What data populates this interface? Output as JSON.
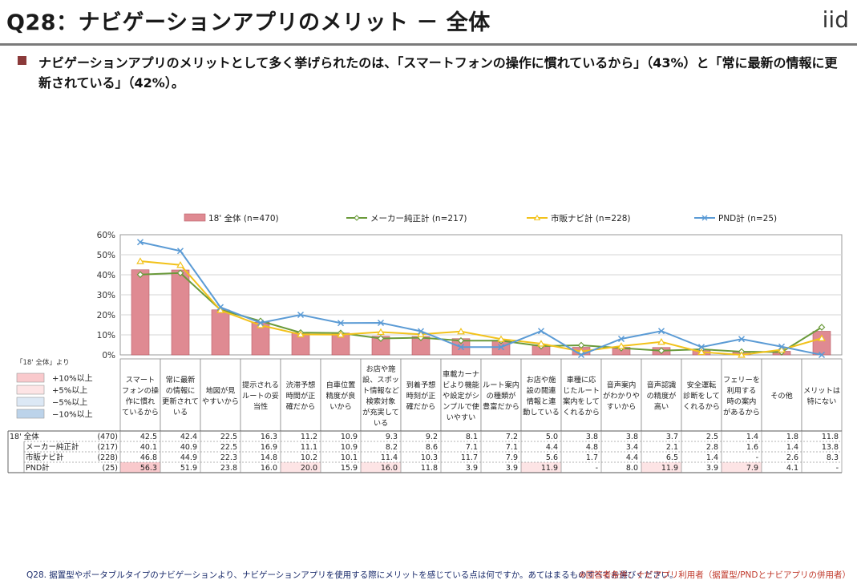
{
  "page": {
    "title": "Q28：ナビゲーションアプリのメリット － 全体",
    "logo": "iid",
    "lead": "ナビゲーションアプリのメリットとして多く挙げられたのは、「スマートフォンの操作に慣れているから」（43%）と「常に最新の情報に更新されている」（42%）。",
    "footer_question": "Q28. 据置型やポータブルタイプのナビゲーションより、ナビゲーションアプリを使用する際にメリットを感じている点は何ですか。あてはまるものすべてお選びください。",
    "footer_note": "※回答者条件：ナビアプリ利用者（据置型/PNDとナビアプリの併用者）",
    "table_note": "「18' 全体」より",
    "highlight_legend": [
      "+10%以上",
      "+5%以上",
      "−5%以上",
      "−10%以上"
    ],
    "highlight_colors": [
      "#f9c9cc",
      "#fde4e5",
      "#dce8f5",
      "#bcd3ea"
    ]
  },
  "chart_data": {
    "type": "bar",
    "y_ticks": [
      "0%",
      "10%",
      "20%",
      "30%",
      "40%",
      "50%",
      "60%"
    ],
    "ylim": [
      0,
      60
    ],
    "categories": [
      [
        "スマート",
        "フォンの操",
        "作に慣れ",
        "ているから"
      ],
      [
        "常に最新",
        "の情報に",
        "更新されて",
        "いる"
      ],
      [
        "地図が見",
        "やすいから"
      ],
      [
        "提示される",
        "ルートの妥",
        "当性"
      ],
      [
        "渋滞予想",
        "時間が正",
        "確だから"
      ],
      [
        "自車位置",
        "精度が良",
        "いから"
      ],
      [
        "お店や施",
        "設、スポッ",
        "ト情報など",
        "検索対象",
        "が充実して",
        "いる"
      ],
      [
        "到着予想",
        "時刻が正",
        "確だから"
      ],
      [
        "車載カーナ",
        "ビより機能",
        "や設定がシ",
        "ンプルで使",
        "いやすい"
      ],
      [
        "ルート案内",
        "の種類が",
        "豊富だから"
      ],
      [
        "お店や施",
        "設の閲連",
        "情報と連",
        "動している"
      ],
      [
        "車種に応",
        "じたルート",
        "案内をして",
        "くれるから"
      ],
      [
        "音声案内",
        "がわかりや",
        "すいから"
      ],
      [
        "音声認識",
        "の精度が",
        "高い"
      ],
      [
        "安全運転",
        "診断をして",
        "くれるから"
      ],
      [
        "フェリーを",
        "利用する",
        "時の案内",
        "があるから"
      ],
      [
        "その他"
      ],
      [
        "メリットは",
        "特にない"
      ]
    ],
    "series": [
      {
        "name": "18' 全体 (n=470)",
        "type": "bar",
        "color": "#df8a92",
        "values": [
          42.5,
          42.4,
          22.5,
          16.3,
          11.2,
          10.9,
          9.3,
          9.2,
          8.1,
          7.2,
          5.0,
          3.8,
          3.8,
          3.7,
          2.5,
          1.4,
          1.8,
          11.8
        ]
      },
      {
        "name": "メーカー純正計 (n=217)",
        "type": "line",
        "color": "#6a9a3a",
        "values": [
          40.1,
          40.9,
          22.5,
          16.9,
          11.1,
          10.9,
          8.2,
          8.6,
          7.1,
          7.1,
          4.4,
          4.8,
          3.4,
          2.1,
          2.8,
          1.6,
          1.4,
          13.8
        ]
      },
      {
        "name": "市販ナビ計 (n=228)",
        "type": "line",
        "color": "#f2c21b",
        "values": [
          46.8,
          44.9,
          22.3,
          14.8,
          10.2,
          10.1,
          11.4,
          10.3,
          11.7,
          7.9,
          5.6,
          1.7,
          4.4,
          6.5,
          1.4,
          null,
          2.6,
          8.3
        ]
      },
      {
        "name": "PND計 (n=25)",
        "type": "line",
        "color": "#5b9bd5",
        "values": [
          56.3,
          51.9,
          23.8,
          16.0,
          20.0,
          15.9,
          16.0,
          11.8,
          3.9,
          3.9,
          11.9,
          null,
          8.0,
          11.9,
          3.9,
          7.9,
          4.1,
          null
        ]
      }
    ],
    "table_rows": [
      {
        "label": "18' 全体",
        "n": "(470)",
        "cells": [
          "42.5",
          "42.4",
          "22.5",
          "16.3",
          "11.2",
          "10.9",
          "9.3",
          "9.2",
          "8.1",
          "7.2",
          "5.0",
          "3.8",
          "3.8",
          "3.7",
          "2.5",
          "1.4",
          "1.8",
          "11.8"
        ],
        "hl": [
          0,
          0,
          0,
          0,
          0,
          0,
          0,
          0,
          0,
          0,
          0,
          0,
          0,
          0,
          0,
          0,
          0,
          0
        ]
      },
      {
        "label": "メーカー純正計",
        "n": "(217)",
        "cells": [
          "40.1",
          "40.9",
          "22.5",
          "16.9",
          "11.1",
          "10.9",
          "8.2",
          "8.6",
          "7.1",
          "7.1",
          "4.4",
          "4.8",
          "3.4",
          "2.1",
          "2.8",
          "1.6",
          "1.4",
          "13.8"
        ],
        "hl": [
          0,
          0,
          0,
          0,
          0,
          0,
          0,
          0,
          0,
          0,
          0,
          0,
          0,
          0,
          0,
          0,
          0,
          0
        ]
      },
      {
        "label": "市販ナビ計",
        "n": "(228)",
        "cells": [
          "46.8",
          "44.9",
          "22.3",
          "14.8",
          "10.2",
          "10.1",
          "11.4",
          "10.3",
          "11.7",
          "7.9",
          "5.6",
          "1.7",
          "4.4",
          "6.5",
          "1.4",
          "-",
          "2.6",
          "8.3"
        ],
        "hl": [
          0,
          0,
          0,
          0,
          0,
          0,
          0,
          0,
          0,
          0,
          0,
          0,
          0,
          0,
          0,
          0,
          0,
          0
        ]
      },
      {
        "label": "PND計",
        "n": "(25)",
        "cells": [
          "56.3",
          "51.9",
          "23.8",
          "16.0",
          "20.0",
          "15.9",
          "16.0",
          "11.8",
          "3.9",
          "3.9",
          "11.9",
          "-",
          "8.0",
          "11.9",
          "3.9",
          "7.9",
          "4.1",
          "-"
        ],
        "hl": [
          1,
          0,
          0,
          0,
          2,
          0,
          2,
          0,
          0,
          0,
          2,
          0,
          0,
          2,
          0,
          2,
          0,
          0
        ]
      }
    ]
  }
}
